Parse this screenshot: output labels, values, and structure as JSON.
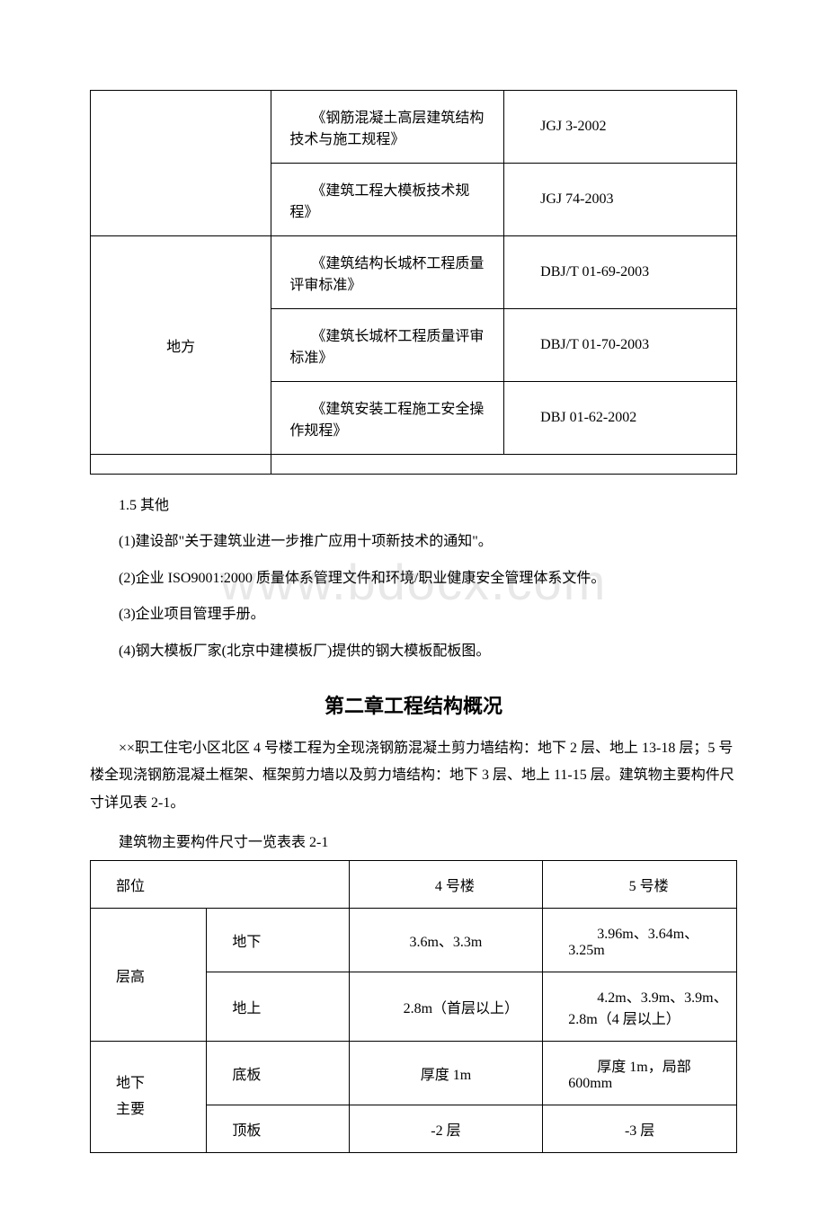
{
  "watermark": "www.bdocx.com",
  "table1": {
    "rows": [
      {
        "col1": "",
        "col2": "　　《钢筋混凝土高层建筑结构技术与施工规程》",
        "col3": "JGJ 3-2002",
        "rowspan": 2,
        "hideCol1": false
      },
      {
        "col1": "",
        "col2": "　　《建筑工程大模板技术规程》",
        "col3": "JGJ 74-2003",
        "hideCol1": true
      },
      {
        "col1": "地方",
        "col2": "　　《建筑结构长城杯工程质量评审标准》",
        "col3": "DBJ/T 01-69-2003",
        "rowspan": 3,
        "hideCol1": false
      },
      {
        "col1": "",
        "col2": "　　《建筑长城杯工程质量评审标准》",
        "col3": "DBJ/T 01-70-2003",
        "hideCol1": true
      },
      {
        "col1": "",
        "col2": "　　《建筑安装工程施工安全操作规程》",
        "col3": "DBJ 01-62-2002",
        "hideCol1": true
      }
    ],
    "colWidths": [
      "28%",
      "36%",
      "36%"
    ]
  },
  "section15": {
    "title": "1.5 其他",
    "items": [
      "(1)建设部\"关于建筑业进一步推广应用十项新技术的通知\"。",
      "(2)企业 ISO9001:2000 质量体系管理文件和环境/职业健康安全管理体系文件。",
      "(3)企业项目管理手册。",
      "(4)钢大模板厂家(北京中建模板厂)提供的钢大模板配板图。"
    ]
  },
  "chapter2": {
    "title": "第二章工程结构概况",
    "desc": "××职工住宅小区北区 4 号楼工程为全现浇钢筋混凝土剪力墙结构：地下 2 层、地上 13-18 层；5 号楼全现浇钢筋混凝土框架、框架剪力墙以及剪力墙结构：地下 3 层、地上 11-15 层。建筑物主要构件尺寸详见表 2-1。",
    "caption": "建筑物主要构件尺寸一览表表 2-1"
  },
  "table2": {
    "header": {
      "a": "部位",
      "c": "4 号楼",
      "d": "5 号楼"
    },
    "rows": [
      {
        "a": "层高",
        "b": "地下",
        "c": "3.6m、3.3m",
        "d": "　　3.96m、3.64m、3.25m",
        "rowspanA": 2
      },
      {
        "b": "地上",
        "c": "　　2.8m（首层以上）",
        "d": "　　4.2m、3.9m、3.9m、2.8m（4 层以上）"
      },
      {
        "a": "地下主要",
        "b": "底板",
        "c": "厚度 1m",
        "d": "　　厚度 1m，局部 600mm",
        "rowspanA": 2
      },
      {
        "b": "顶板",
        "c": "-2 层",
        "d": "-3 层"
      }
    ]
  }
}
